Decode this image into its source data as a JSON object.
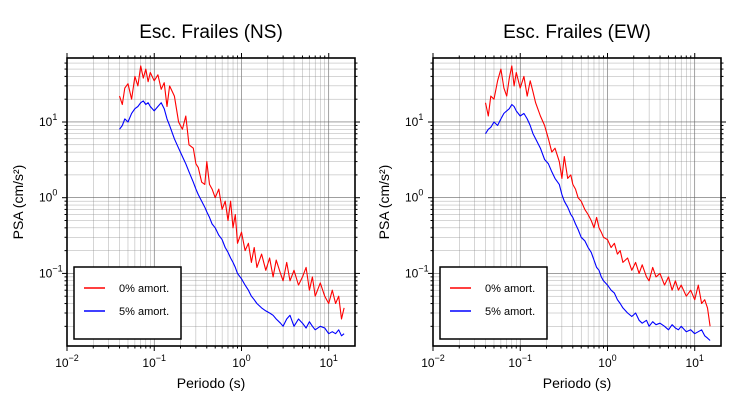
{
  "chart_data": [
    {
      "type": "line",
      "title": "Esc. Frailes (NS)",
      "xlabel": "Periodo (s)",
      "ylabel": "PSA (cm/s²)",
      "xscale": "log",
      "yscale": "log",
      "xlim": [
        0.01,
        20
      ],
      "ylim": [
        0.011,
        70
      ],
      "grid": true,
      "legend": "bottom-left",
      "x_ticks": [
        {
          "value": 0.01,
          "base": "10",
          "exp": "−2"
        },
        {
          "value": 0.1,
          "base": "10",
          "exp": "−1"
        },
        {
          "value": 1,
          "base": "10",
          "exp": "0"
        },
        {
          "value": 10,
          "base": "10",
          "exp": "1"
        }
      ],
      "y_ticks": [
        {
          "value": 0.1,
          "base": "10",
          "exp": "−1"
        },
        {
          "value": 1,
          "base": "10",
          "exp": "0"
        },
        {
          "value": 10,
          "base": "10",
          "exp": "1"
        }
      ],
      "series": [
        {
          "name": "0% amort.",
          "color": "#ff0000",
          "x": [
            0.04,
            0.043,
            0.046,
            0.05,
            0.055,
            0.06,
            0.065,
            0.07,
            0.075,
            0.08,
            0.085,
            0.09,
            0.1,
            0.11,
            0.12,
            0.13,
            0.14,
            0.15,
            0.17,
            0.19,
            0.21,
            0.23,
            0.25,
            0.28,
            0.3,
            0.32,
            0.35,
            0.38,
            0.4,
            0.43,
            0.46,
            0.5,
            0.55,
            0.6,
            0.65,
            0.7,
            0.75,
            0.8,
            0.85,
            0.9,
            1.0,
            1.1,
            1.2,
            1.3,
            1.4,
            1.5,
            1.7,
            1.9,
            2.1,
            2.3,
            2.5,
            2.8,
            3.0,
            3.3,
            3.6,
            4.0,
            4.5,
            5.0,
            5.5,
            6.0,
            6.5,
            7.0,
            8.0,
            9.0,
            10.0,
            11.0,
            12.0,
            13.0,
            14.0,
            15.0
          ],
          "y": [
            22,
            17,
            28,
            32,
            20,
            40,
            30,
            55,
            38,
            50,
            34,
            45,
            35,
            42,
            27,
            33,
            16,
            30,
            22,
            10,
            8,
            12,
            5,
            4.5,
            2.8,
            2.5,
            1.6,
            1.5,
            3.0,
            1.5,
            1.3,
            1.0,
            1.3,
            0.7,
            0.9,
            0.5,
            0.9,
            0.4,
            0.6,
            0.25,
            0.35,
            0.2,
            0.25,
            0.14,
            0.22,
            0.12,
            0.18,
            0.11,
            0.16,
            0.09,
            0.15,
            0.1,
            0.08,
            0.14,
            0.08,
            0.11,
            0.07,
            0.09,
            0.12,
            0.06,
            0.09,
            0.05,
            0.075,
            0.05,
            0.04,
            0.06,
            0.04,
            0.05,
            0.025,
            0.035
          ]
        },
        {
          "name": "5% amort.",
          "color": "#0000ff",
          "x": [
            0.04,
            0.043,
            0.046,
            0.05,
            0.055,
            0.06,
            0.065,
            0.07,
            0.075,
            0.08,
            0.085,
            0.09,
            0.1,
            0.11,
            0.12,
            0.13,
            0.14,
            0.15,
            0.17,
            0.19,
            0.21,
            0.23,
            0.25,
            0.28,
            0.3,
            0.32,
            0.35,
            0.38,
            0.4,
            0.43,
            0.46,
            0.5,
            0.55,
            0.6,
            0.65,
            0.7,
            0.75,
            0.8,
            0.85,
            0.9,
            1.0,
            1.1,
            1.2,
            1.3,
            1.4,
            1.5,
            1.7,
            1.9,
            2.1,
            2.3,
            2.5,
            2.8,
            3.0,
            3.3,
            3.6,
            4.0,
            4.5,
            5.0,
            5.5,
            6.0,
            6.5,
            7.0,
            8.0,
            9.0,
            10.0,
            11.0,
            12.0,
            13.0,
            14.0,
            15.0
          ],
          "y": [
            8,
            9,
            11,
            10,
            13,
            15,
            16,
            18,
            19,
            17,
            18,
            16,
            14,
            16,
            18,
            15,
            11,
            9,
            6,
            4.5,
            3.5,
            2.8,
            2.2,
            1.6,
            1.3,
            1.1,
            0.9,
            0.75,
            0.65,
            0.55,
            0.45,
            0.4,
            0.32,
            0.28,
            0.22,
            0.19,
            0.16,
            0.14,
            0.12,
            0.1,
            0.085,
            0.07,
            0.06,
            0.05,
            0.045,
            0.04,
            0.035,
            0.032,
            0.03,
            0.028,
            0.025,
            0.022,
            0.02,
            0.025,
            0.028,
            0.02,
            0.025,
            0.022,
            0.019,
            0.023,
            0.02,
            0.018,
            0.02,
            0.019,
            0.016,
            0.017,
            0.016,
            0.018,
            0.015,
            0.016
          ]
        }
      ]
    },
    {
      "type": "line",
      "title": "Esc. Frailes (EW)",
      "xlabel": "Periodo (s)",
      "ylabel": "PSA (cm/s²)",
      "xscale": "log",
      "yscale": "log",
      "xlim": [
        0.01,
        20
      ],
      "ylim": [
        0.011,
        70
      ],
      "grid": true,
      "legend": "bottom-left",
      "x_ticks": [
        {
          "value": 0.01,
          "base": "10",
          "exp": "−2"
        },
        {
          "value": 0.1,
          "base": "10",
          "exp": "−1"
        },
        {
          "value": 1,
          "base": "10",
          "exp": "0"
        },
        {
          "value": 10,
          "base": "10",
          "exp": "1"
        }
      ],
      "y_ticks": [
        {
          "value": 0.1,
          "base": "10",
          "exp": "−1"
        },
        {
          "value": 1,
          "base": "10",
          "exp": "0"
        },
        {
          "value": 10,
          "base": "10",
          "exp": "1"
        }
      ],
      "series": [
        {
          "name": "0% amort.",
          "color": "#ff0000",
          "x": [
            0.04,
            0.043,
            0.046,
            0.05,
            0.055,
            0.06,
            0.065,
            0.07,
            0.075,
            0.08,
            0.085,
            0.09,
            0.1,
            0.11,
            0.12,
            0.13,
            0.14,
            0.15,
            0.17,
            0.19,
            0.21,
            0.23,
            0.25,
            0.28,
            0.3,
            0.32,
            0.35,
            0.38,
            0.4,
            0.43,
            0.46,
            0.5,
            0.55,
            0.6,
            0.65,
            0.7,
            0.75,
            0.8,
            0.85,
            0.9,
            1.0,
            1.1,
            1.2,
            1.3,
            1.4,
            1.5,
            1.7,
            1.9,
            2.1,
            2.3,
            2.5,
            2.8,
            3.0,
            3.3,
            3.6,
            4.0,
            4.5,
            5.0,
            5.5,
            6.0,
            6.5,
            7.0,
            8.0,
            9.0,
            10.0,
            11.0,
            12.0,
            13.0,
            14.0,
            15.0
          ],
          "y": [
            18,
            12,
            22,
            20,
            35,
            50,
            28,
            22,
            38,
            55,
            30,
            45,
            28,
            40,
            22,
            35,
            25,
            18,
            12,
            9,
            6,
            4,
            4.5,
            3,
            1.8,
            3.5,
            1.8,
            2.0,
            1.5,
            1.3,
            1.0,
            0.9,
            0.7,
            0.6,
            0.5,
            0.4,
            0.55,
            0.4,
            0.35,
            0.3,
            0.28,
            0.22,
            0.25,
            0.18,
            0.2,
            0.14,
            0.16,
            0.11,
            0.14,
            0.1,
            0.13,
            0.09,
            0.08,
            0.12,
            0.09,
            0.1,
            0.07,
            0.09,
            0.06,
            0.08,
            0.06,
            0.07,
            0.05,
            0.06,
            0.045,
            0.07,
            0.04,
            0.045,
            0.035,
            0.02
          ]
        },
        {
          "name": "5% amort.",
          "color": "#0000ff",
          "x": [
            0.04,
            0.043,
            0.046,
            0.05,
            0.055,
            0.06,
            0.065,
            0.07,
            0.075,
            0.08,
            0.085,
            0.09,
            0.1,
            0.11,
            0.12,
            0.13,
            0.14,
            0.15,
            0.17,
            0.19,
            0.21,
            0.23,
            0.25,
            0.28,
            0.3,
            0.32,
            0.35,
            0.38,
            0.4,
            0.43,
            0.46,
            0.5,
            0.55,
            0.6,
            0.65,
            0.7,
            0.75,
            0.8,
            0.85,
            0.9,
            1.0,
            1.1,
            1.2,
            1.3,
            1.4,
            1.5,
            1.7,
            1.9,
            2.1,
            2.3,
            2.5,
            2.8,
            3.0,
            3.3,
            3.6,
            4.0,
            4.5,
            5.0,
            5.5,
            6.0,
            6.5,
            7.0,
            8.0,
            9.0,
            10.0,
            11.0,
            12.0,
            13.0,
            14.0,
            15.0
          ],
          "y": [
            7,
            8,
            8.5,
            10,
            9,
            11,
            13,
            14,
            15,
            17,
            16,
            14,
            12,
            13,
            11,
            9,
            7,
            6,
            4.5,
            3.2,
            2.8,
            2.2,
            1.8,
            1.5,
            1.1,
            0.9,
            0.75,
            0.6,
            0.55,
            0.45,
            0.38,
            0.3,
            0.27,
            0.22,
            0.19,
            0.15,
            0.12,
            0.11,
            0.09,
            0.08,
            0.07,
            0.06,
            0.055,
            0.045,
            0.04,
            0.035,
            0.03,
            0.027,
            0.03,
            0.024,
            0.022,
            0.024,
            0.02,
            0.023,
            0.021,
            0.022,
            0.02,
            0.018,
            0.021,
            0.019,
            0.018,
            0.02,
            0.017,
            0.018,
            0.016,
            0.017,
            0.018,
            0.015,
            0.014,
            0.013
          ]
        }
      ]
    }
  ]
}
